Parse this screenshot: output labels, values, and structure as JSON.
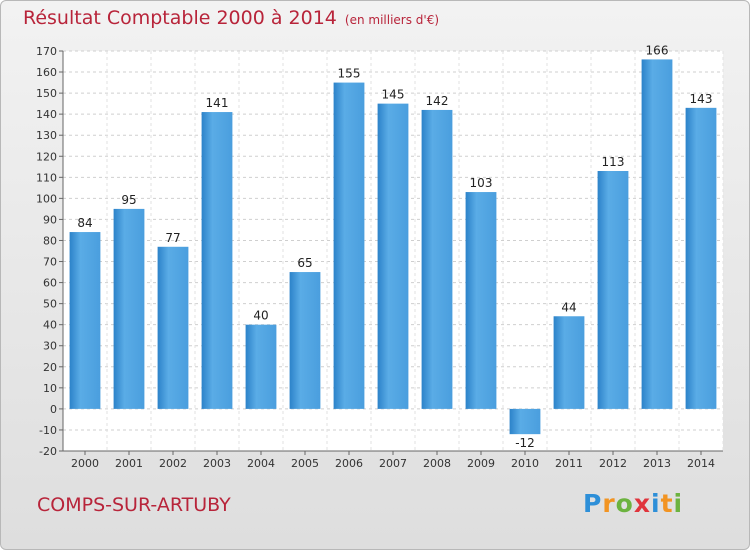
{
  "header": {
    "title": "Résultat Comptable 2000 à 2014",
    "subtitle": "(en milliers d'€)"
  },
  "footer": {
    "place": "COMPS-SUR-ARTUBY",
    "logo_letters": [
      "P",
      "r",
      "o",
      "x",
      "i",
      "t",
      "i"
    ]
  },
  "colors": {
    "title": "#b8243a",
    "bar_light": "#5aace6",
    "bar_dark": "#2c82c9"
  },
  "chart_data": {
    "type": "bar",
    "title": "Résultat Comptable 2000 à 2014",
    "subtitle": "(en milliers d'€)",
    "categories": [
      "2000",
      "2001",
      "2002",
      "2003",
      "2004",
      "2005",
      "2006",
      "2007",
      "2008",
      "2009",
      "2010",
      "2011",
      "2012",
      "2013",
      "2014"
    ],
    "values": [
      84,
      95,
      77,
      141,
      40,
      65,
      155,
      145,
      142,
      103,
      -12,
      44,
      113,
      166,
      143
    ],
    "ylim": [
      -20,
      170
    ],
    "yticks": [
      -20,
      -10,
      0,
      10,
      20,
      30,
      40,
      50,
      60,
      70,
      80,
      90,
      100,
      110,
      120,
      130,
      140,
      150,
      160,
      170
    ],
    "grid": true,
    "legend": "none"
  }
}
